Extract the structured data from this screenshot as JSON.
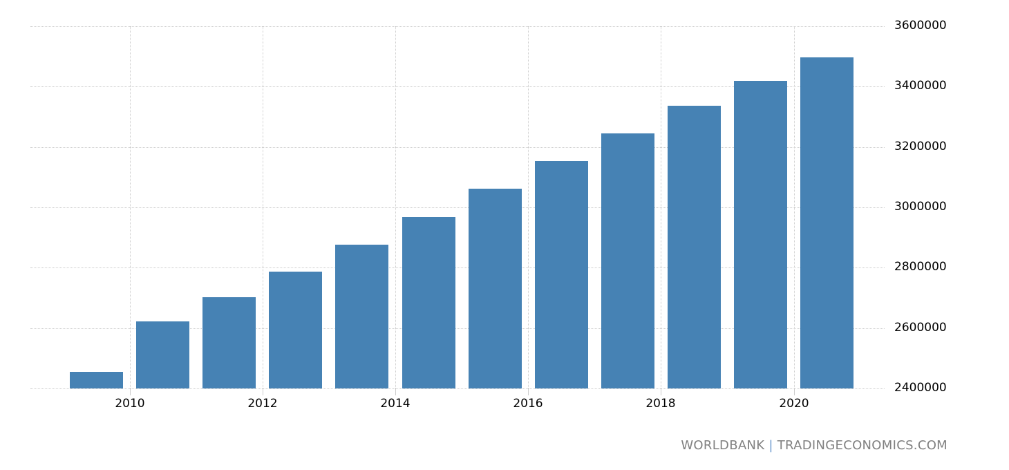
{
  "chart_data": {
    "type": "bar",
    "title": "",
    "xlabel": "",
    "ylabel": "",
    "categories": [
      "2009",
      "2010",
      "2011",
      "2012",
      "2013",
      "2014",
      "2015",
      "2016",
      "2017",
      "2018",
      "2019",
      "2020"
    ],
    "values": [
      2455000,
      2622000,
      2702000,
      2787000,
      2876000,
      2968000,
      3062000,
      3153000,
      3245000,
      3337000,
      3419000,
      3497000
    ],
    "ylim": [
      2400000,
      3600000
    ],
    "yticks": [
      2400000,
      2600000,
      2800000,
      3000000,
      3200000,
      3400000,
      3600000
    ],
    "ytick_labels": [
      "2400000",
      "2600000",
      "2800000",
      "3000000",
      "3200000",
      "3400000",
      "3600000"
    ],
    "xtick_labels": [
      "2010",
      "2012",
      "2014",
      "2016",
      "2018",
      "2020"
    ],
    "grid": true,
    "y_axis_position": "right",
    "bar_color": "#4682b4"
  },
  "source": {
    "left": "WORLDBANK",
    "separator": "|",
    "right": "TRADINGECONOMICS.COM"
  }
}
